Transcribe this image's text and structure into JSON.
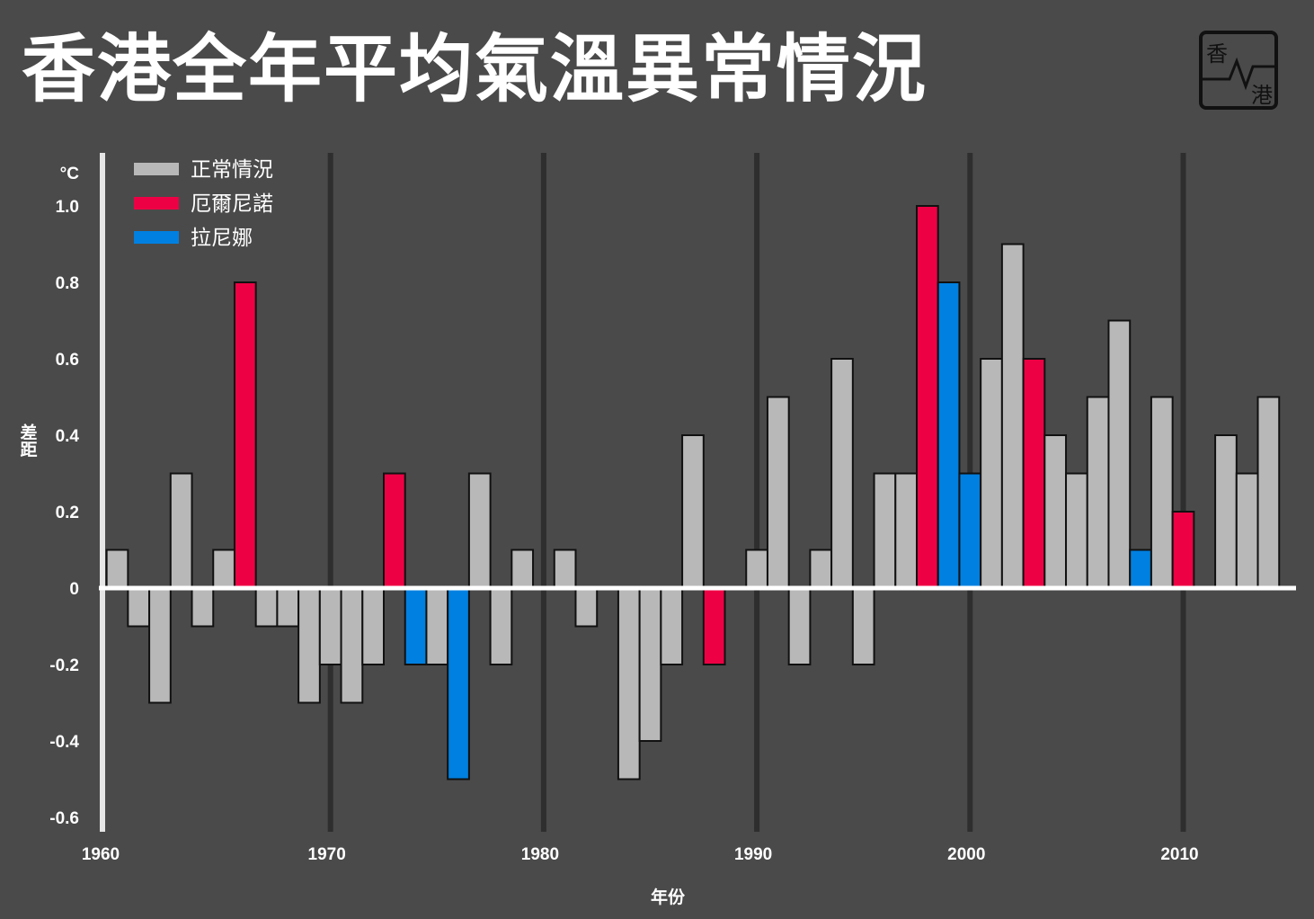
{
  "title": "香港全年平均氣溫異常情況",
  "logo": {
    "top": "香",
    "bottom": "港"
  },
  "chart_data": {
    "type": "bar",
    "title": "香港全年平均氣溫異常情況",
    "xlabel": "年份",
    "ylabel": "差距",
    "yunit": "°C",
    "ylim": [
      -0.6,
      1.0
    ],
    "yticks": [
      "1.0",
      "0.8",
      "0.6",
      "0.4",
      "0.2",
      "0",
      "-0.2",
      "-0.4",
      "-0.6"
    ],
    "ytick_values": [
      1.0,
      0.8,
      0.6,
      0.4,
      0.2,
      0,
      -0.2,
      -0.4,
      -0.6
    ],
    "xticks": [
      1960,
      1970,
      1980,
      1990,
      2000,
      2010
    ],
    "legend_position": "top-left",
    "legend": [
      {
        "key": "n",
        "label": "正常情況",
        "color": "#b8b8b8"
      },
      {
        "key": "e",
        "label": "厄爾尼諾",
        "color": "#ee0044"
      },
      {
        "key": "l",
        "label": "拉尼娜",
        "color": "#0080e0"
      }
    ],
    "years": [
      1960,
      1961,
      1962,
      1963,
      1964,
      1965,
      1966,
      1967,
      1968,
      1969,
      1970,
      1971,
      1972,
      1973,
      1974,
      1975,
      1976,
      1977,
      1978,
      1979,
      1980,
      1981,
      1982,
      1983,
      1984,
      1985,
      1986,
      1987,
      1988,
      1989,
      1990,
      1991,
      1992,
      1993,
      1994,
      1995,
      1996,
      1997,
      1998,
      1999,
      2000,
      2001,
      2002,
      2003,
      2004,
      2005,
      2006,
      2007,
      2008,
      2009,
      2010,
      2011,
      2012,
      2013,
      2014
    ],
    "values": [
      0.1,
      -0.1,
      -0.3,
      0.3,
      -0.1,
      0.1,
      0.8,
      -0.1,
      -0.1,
      -0.3,
      -0.2,
      -0.3,
      -0.2,
      0.3,
      -0.2,
      -0.2,
      -0.5,
      0.3,
      -0.2,
      0.1,
      0,
      0.1,
      -0.1,
      0,
      -0.5,
      -0.4,
      -0.2,
      0.4,
      -0.2,
      0,
      0.1,
      0.5,
      -0.2,
      0.1,
      0.6,
      -0.2,
      0.3,
      0.3,
      1.0,
      0.8,
      0.3,
      0.6,
      0.9,
      0.6,
      0.4,
      0.3,
      0.5,
      0.7,
      0.1,
      0.5,
      0.2,
      0,
      0.4,
      0.3,
      0.5
    ],
    "condition": [
      "n",
      "n",
      "n",
      "n",
      "n",
      "n",
      "e",
      "n",
      "n",
      "n",
      "n",
      "n",
      "n",
      "e",
      "l",
      "n",
      "l",
      "n",
      "n",
      "n",
      "n",
      "n",
      "n",
      "n",
      "n",
      "n",
      "n",
      "n",
      "e",
      "n",
      "n",
      "n",
      "n",
      "n",
      "n",
      "n",
      "n",
      "n",
      "e",
      "l",
      "l",
      "n",
      "n",
      "e",
      "n",
      "n",
      "n",
      "n",
      "l",
      "n",
      "e",
      "n",
      "n",
      "n",
      "n"
    ]
  }
}
